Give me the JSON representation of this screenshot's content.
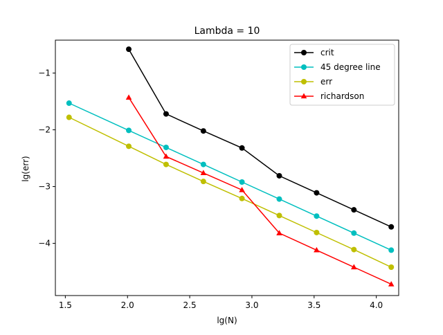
{
  "chart_data": {
    "type": "line",
    "title": "Lambda = 10",
    "xlabel": "lg(N)",
    "ylabel": "lg(err)",
    "xlim": [
      1.42,
      4.18
    ],
    "ylim": [
      -4.92,
      -0.42
    ],
    "xticks": [
      1.5,
      2.0,
      2.5,
      3.0,
      3.5,
      4.0
    ],
    "xtick_labels": [
      "1.5",
      "2.0",
      "2.5",
      "3.0",
      "3.5",
      "4.0"
    ],
    "yticks": [
      -4,
      -3,
      -2,
      -1
    ],
    "ytick_labels": [
      "−4",
      "−3",
      "−2",
      "−1"
    ],
    "grid": false,
    "legend_position": "upper right",
    "series": [
      {
        "name": "crit",
        "color": "#000000",
        "marker": "circle",
        "x": [
          2.01,
          2.31,
          2.61,
          2.92,
          3.22,
          3.52,
          3.82,
          4.12
        ],
        "y": [
          -0.58,
          -1.72,
          -2.02,
          -2.32,
          -2.81,
          -3.11,
          -3.41,
          -3.71
        ]
      },
      {
        "name": "45 degree line",
        "color": "#00bfbf",
        "marker": "circle",
        "x": [
          1.53,
          2.01,
          2.31,
          2.61,
          2.92,
          3.22,
          3.52,
          3.82,
          4.12
        ],
        "y": [
          -1.53,
          -2.01,
          -2.31,
          -2.61,
          -2.92,
          -3.22,
          -3.52,
          -3.82,
          -4.12
        ]
      },
      {
        "name": "err",
        "color": "#bfbf00",
        "marker": "circle",
        "x": [
          1.53,
          2.01,
          2.31,
          2.61,
          2.92,
          3.22,
          3.52,
          3.82,
          4.12
        ],
        "y": [
          -1.78,
          -2.29,
          -2.61,
          -2.91,
          -3.21,
          -3.51,
          -3.81,
          -4.11,
          -4.42
        ]
      },
      {
        "name": "richardson",
        "color": "#ff0000",
        "marker": "triangle",
        "x": [
          2.01,
          2.31,
          2.61,
          2.92,
          3.22,
          3.52,
          3.82,
          4.12
        ],
        "y": [
          -1.43,
          -2.47,
          -2.76,
          -3.06,
          -3.82,
          -4.12,
          -4.42,
          -4.72
        ]
      }
    ]
  }
}
